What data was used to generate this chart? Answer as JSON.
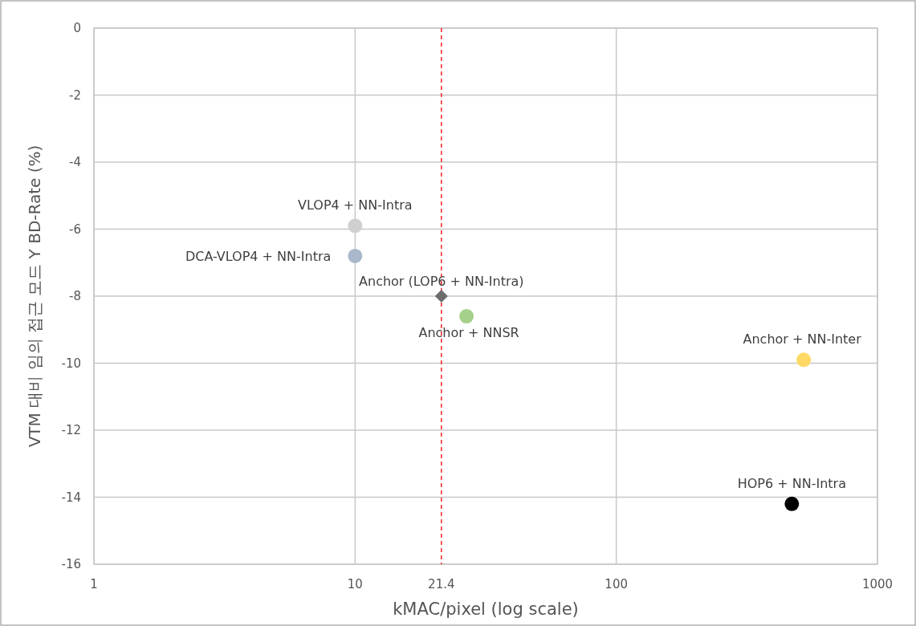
{
  "chart_data": {
    "type": "scatter",
    "xlabel": "kMAC/pixel (log scale)",
    "ylabel": "VTM 대비 임의 접근 모드 Y BD-Rate (%)",
    "log": "x",
    "grid": true,
    "xlim": [
      1,
      1000
    ],
    "xticks": [
      1,
      10,
      100,
      1000
    ],
    "ylim": [
      -16,
      0
    ],
    "yticks": [
      0,
      -2,
      -4,
      -6,
      -8,
      -10,
      -12,
      -14,
      -16
    ],
    "series": [
      {
        "name": "VLOP4 + NN-Intra",
        "color": "#d0d0d0",
        "marker": "circle",
        "x": [
          10
        ],
        "values": [
          -5.9
        ]
      },
      {
        "name": "DCA-VLOP4 + NN-Intra",
        "color": "#aab8cc",
        "marker": "circle",
        "x": [
          10
        ],
        "values": [
          -6.8
        ]
      },
      {
        "name": "Anchor (LOP6 + NN-Intra)",
        "color": "#6d6d6d",
        "marker": "diamond",
        "x": [
          21.4
        ],
        "values": [
          -8.0
        ]
      },
      {
        "name": "Anchor + NNSR",
        "color": "#a5d08a",
        "marker": "circle",
        "x": [
          26.7
        ],
        "values": [
          -8.6
        ]
      },
      {
        "name": "Anchor + NN-Inter",
        "color": "#ffd966",
        "marker": "circle",
        "x": [
          522
        ],
        "values": [
          -9.9
        ]
      },
      {
        "name": "HOP6 + NN-Intra",
        "color": "#000000",
        "marker": "circle",
        "x": [
          470
        ],
        "values": [
          -14.2
        ]
      }
    ],
    "ref_lines": [
      {
        "axis": "x",
        "value": 21.4,
        "label": "21.4",
        "color": "#ff0000",
        "line_style": "dashed"
      }
    ]
  }
}
